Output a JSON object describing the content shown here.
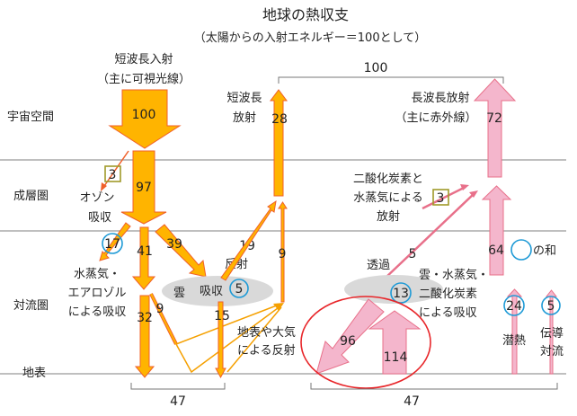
{
  "title": "地球の熱収支",
  "subtitle": "（太陽からの入射エネルギー＝100として）",
  "layers": {
    "space": "宇宙空間",
    "stratosphere": "成層圏",
    "troposphere": "対流圏",
    "surface": "地表"
  },
  "shortwave_in": {
    "label1": "短波長入射",
    "label2": "（主に可視光線）",
    "value_top": "100",
    "value_strat": "97"
  },
  "ozone": {
    "value": "3",
    "label1": "オゾン",
    "label2": "吸収"
  },
  "aerosol": {
    "value": "17",
    "label1": "水蒸気・",
    "label2": "エアロゾル",
    "label3": "による吸収"
  },
  "direct": {
    "v41": "41",
    "v32": "32",
    "v39": "39",
    "v9": "9",
    "v15": "15"
  },
  "cloud": {
    "label": "雲",
    "absorb": "吸収",
    "value": "5",
    "reflect": "反射",
    "v19": "19",
    "v9": "9"
  },
  "surface_reflect": {
    "label1": "地表や大気",
    "label2": "による反射"
  },
  "shortwave_out": {
    "label1": "短波長",
    "label2": "放射",
    "value": "28"
  },
  "top_total": "100",
  "longwave_out": {
    "label1": "長波長放射",
    "label2": "（主に赤外線）",
    "value": "72",
    "v64": "64",
    "sum_label": "の和"
  },
  "co2_emit": {
    "label1": "二酸化炭素と",
    "label2": "水蒸気による",
    "label3": "放射",
    "value": "3"
  },
  "transmit": {
    "label": "透過",
    "value": "5"
  },
  "greenhouse": {
    "label1": "雲・水蒸気・",
    "label2": "二酸化炭素",
    "label3": "による吸収",
    "value": "13"
  },
  "back_radiation": "96",
  "surface_emit": "114",
  "latent": {
    "value": "24",
    "label": "潜熱"
  },
  "convection": {
    "value": "5",
    "label1": "伝導",
    "label2": "対流"
  },
  "bottom_totals": {
    "left": "47",
    "right": "47"
  },
  "colors": {
    "shortwave": "#FFB400",
    "longwave": "#F4B6CC",
    "highlight": "#1E9AD6",
    "outline_red": "#E8262A"
  }
}
